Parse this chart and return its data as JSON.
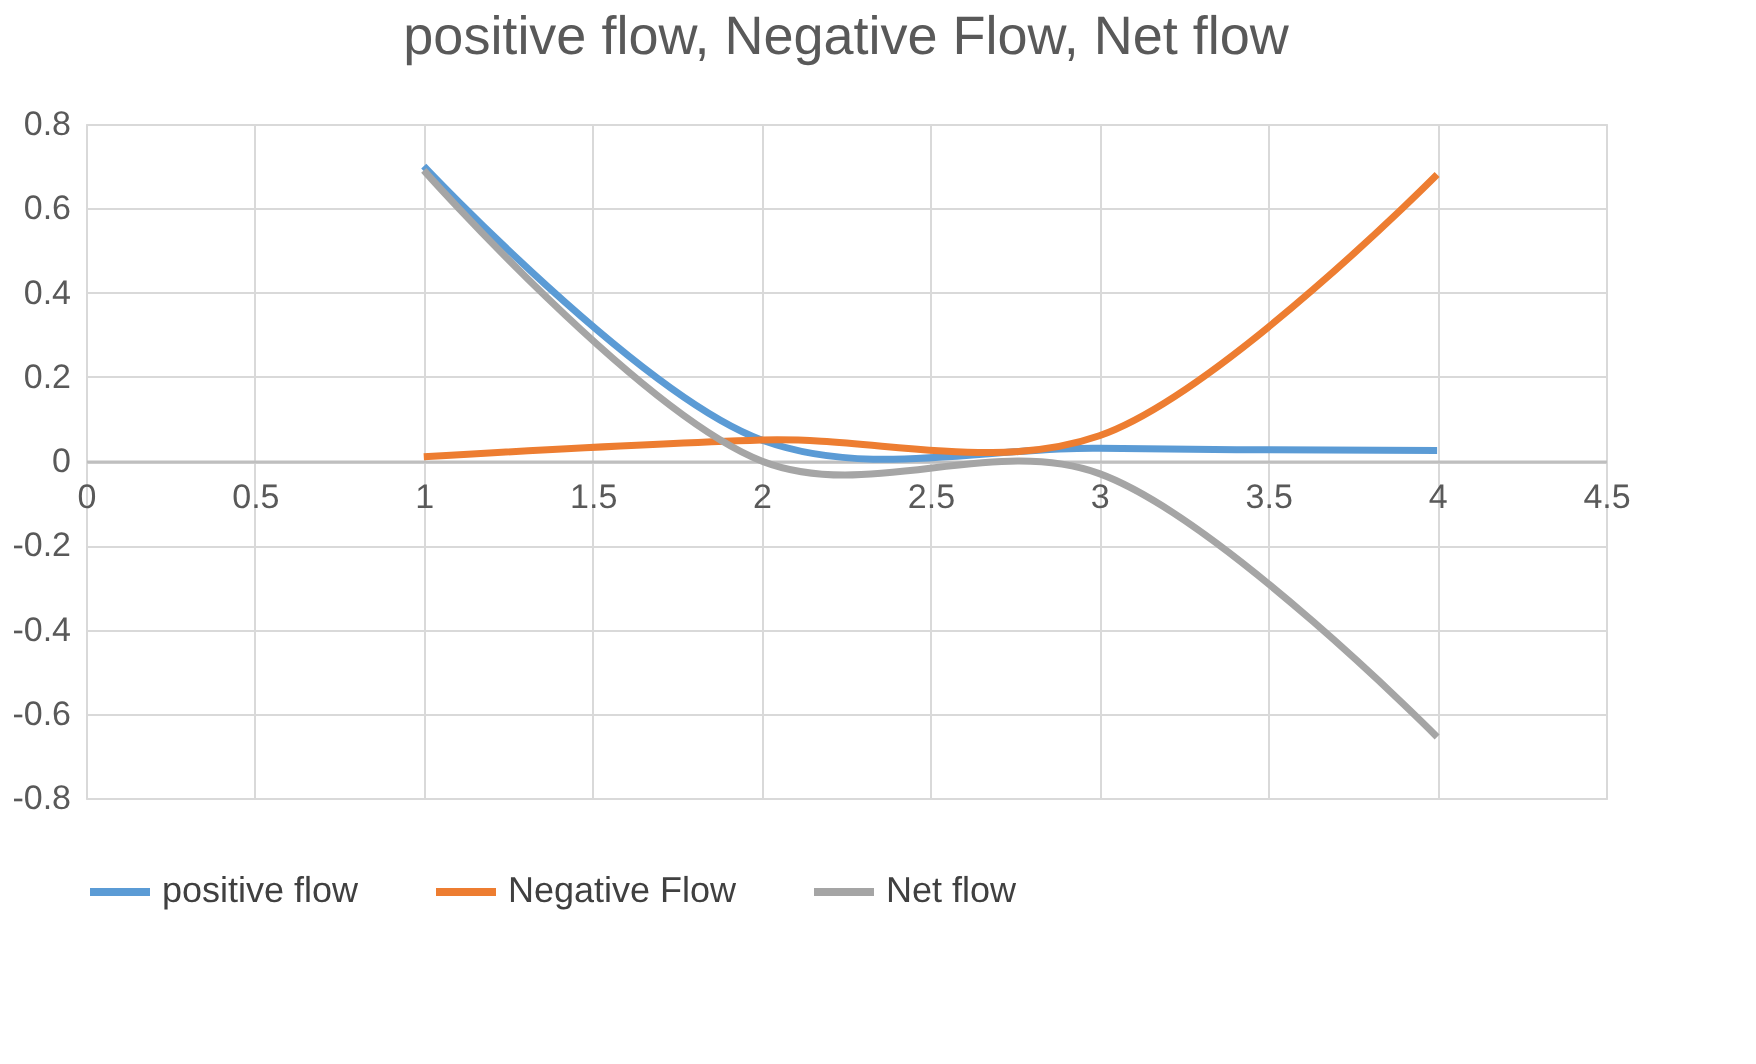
{
  "chart_data": {
    "type": "line",
    "title": "positive flow, Negative Flow, Net flow",
    "x": [
      1,
      2,
      3,
      4
    ],
    "series": [
      {
        "name": "positive flow",
        "color": "#5b9bd5",
        "values": [
          0.7,
          0.05,
          0.03,
          0.025
        ]
      },
      {
        "name": "Negative Flow",
        "color": "#ed7d31",
        "values": [
          0.01,
          0.05,
          0.06,
          0.68
        ]
      },
      {
        "name": "Net flow",
        "color": "#a5a5a5",
        "values": [
          0.69,
          0.0,
          -0.03,
          -0.655
        ]
      }
    ],
    "xlim": [
      0,
      4.5
    ],
    "xticks": [
      0,
      0.5,
      1,
      1.5,
      2,
      2.5,
      3,
      3.5,
      4,
      4.5
    ],
    "ylim": [
      -0.8,
      0.8
    ],
    "yticks": [
      -0.8,
      -0.6,
      -0.4,
      -0.2,
      0,
      0.2,
      0.4,
      0.6,
      0.8
    ],
    "grid": true,
    "legend": "bottom",
    "marker": "none",
    "line_style": "solid"
  }
}
